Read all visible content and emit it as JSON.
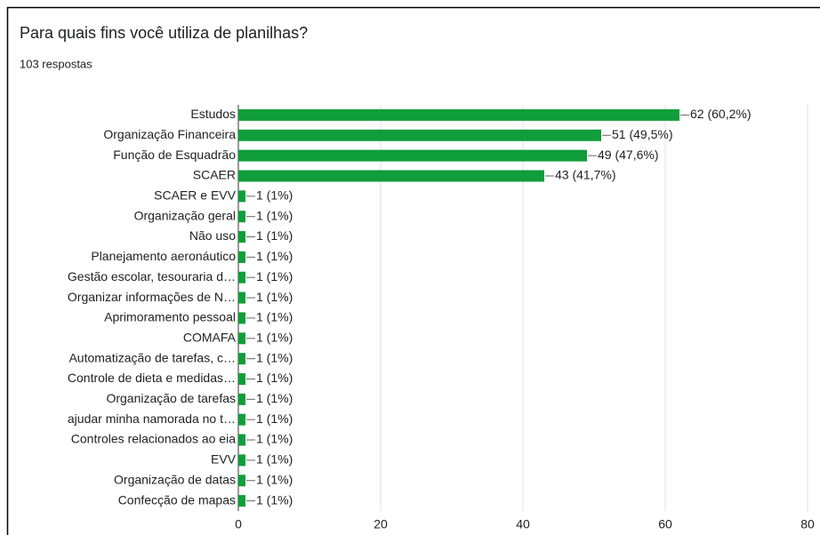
{
  "chart_data": {
    "type": "bar",
    "orientation": "horizontal",
    "title": "Para quais fins você utiliza de planilhas?",
    "subtitle": "103 respostas",
    "categories": [
      "Estudos",
      "Organização Financeira",
      "Função de Esquadrão",
      "SCAER",
      "SCAER e EVV",
      "Organização geral",
      "Não uso",
      "Planejamento aeronáutico",
      "Gestão escolar, tesouraria d…",
      "Organizar informações de N…",
      "Aprimoramento pessoal",
      "COMAFA",
      "Automatização de tarefas, c…",
      "Controle de dieta e medidas…",
      "Organização de tarefas",
      "ajudar minha namorada no t…",
      "Controles relacionados ao eia",
      "EVV",
      "Organização de datas",
      "Confecção de mapas"
    ],
    "values": [
      62,
      51,
      49,
      43,
      1,
      1,
      1,
      1,
      1,
      1,
      1,
      1,
      1,
      1,
      1,
      1,
      1,
      1,
      1,
      1
    ],
    "value_labels": [
      "62 (60,2%)",
      "51 (49,5%)",
      "49 (47,6%)",
      "43 (41,7%)",
      "1 (1%)",
      "1 (1%)",
      "1 (1%)",
      "1 (1%)",
      "1 (1%)",
      "1 (1%)",
      "1 (1%)",
      "1 (1%)",
      "1 (1%)",
      "1 (1%)",
      "1 (1%)",
      "1 (1%)",
      "1 (1%)",
      "1 (1%)",
      "1 (1%)",
      "1 (1%)"
    ],
    "color": "#109d3b",
    "xlim": [
      0,
      80
    ],
    "xticks": [
      0,
      20,
      40,
      60,
      80
    ],
    "grid": true
  }
}
